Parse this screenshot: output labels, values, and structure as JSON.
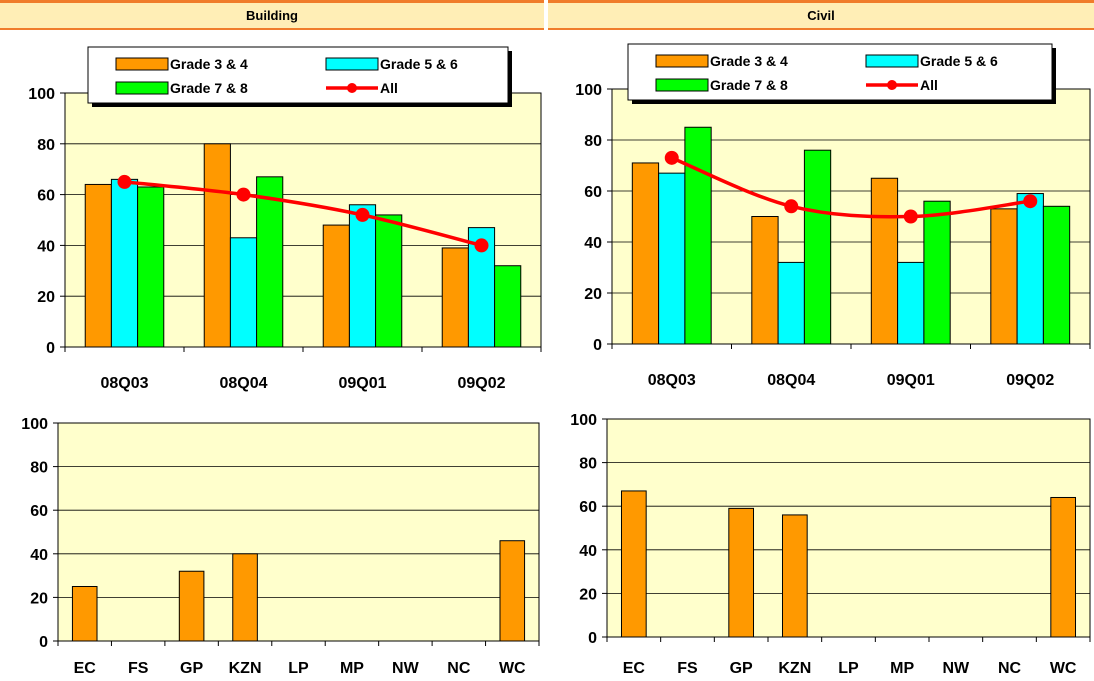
{
  "headers": {
    "left": "Building",
    "right": "Civil"
  },
  "colors": {
    "grade34": "#ff9900",
    "grade56": "#00ffff",
    "grade78": "#00ff00",
    "all": "#ff0000",
    "plot_bg": "#ffffcc",
    "header_bg": "#ffeeb6",
    "header_border": "#f07c2b"
  },
  "chart_data": [
    {
      "id": "building-quarterly",
      "type": "bar",
      "categories": [
        "08Q03",
        "08Q04",
        "09Q01",
        "09Q02"
      ],
      "series": [
        {
          "name": "Grade 3 & 4",
          "values": [
            64,
            80,
            48,
            39
          ]
        },
        {
          "name": "Grade 5 & 6",
          "values": [
            66,
            43,
            56,
            47
          ]
        },
        {
          "name": "Grade 7 & 8",
          "values": [
            63,
            67,
            52,
            32
          ]
        },
        {
          "name": "All",
          "type": "line",
          "values": [
            65,
            60,
            52,
            40
          ]
        }
      ],
      "yticks": [
        "0",
        "20",
        "40",
        "60",
        "80",
        "100"
      ],
      "ylim": [
        0,
        100
      ],
      "legend": "top-inside",
      "grid": true
    },
    {
      "id": "civil-quarterly",
      "type": "bar",
      "categories": [
        "08Q03",
        "08Q04",
        "09Q01",
        "09Q02"
      ],
      "series": [
        {
          "name": "Grade 3 & 4",
          "values": [
            71,
            50,
            65,
            53
          ]
        },
        {
          "name": "Grade 5 & 6",
          "values": [
            67,
            32,
            32,
            59
          ]
        },
        {
          "name": "Grade 7 & 8",
          "values": [
            85,
            76,
            56,
            54
          ]
        },
        {
          "name": "All",
          "type": "line",
          "values": [
            73,
            54,
            50,
            56
          ]
        }
      ],
      "yticks": [
        "0",
        "20",
        "40",
        "60",
        "80",
        "100"
      ],
      "ylim": [
        0,
        100
      ],
      "legend": "top-inside",
      "grid": true
    },
    {
      "id": "building-province",
      "type": "bar",
      "categories": [
        "EC",
        "FS",
        "GP",
        "KZN",
        "LP",
        "MP",
        "NW",
        "NC",
        "WC"
      ],
      "values": [
        25,
        0,
        32,
        40,
        0,
        0,
        0,
        0,
        46
      ],
      "yticks": [
        "0",
        "20",
        "40",
        "60",
        "80",
        "100"
      ],
      "ylim": [
        0,
        100
      ],
      "grid": true
    },
    {
      "id": "civil-province",
      "type": "bar",
      "categories": [
        "EC",
        "FS",
        "GP",
        "KZN",
        "LP",
        "MP",
        "NW",
        "NC",
        "WC"
      ],
      "values": [
        67,
        0,
        59,
        56,
        0,
        0,
        0,
        0,
        64
      ],
      "yticks": [
        "0",
        "20",
        "40",
        "60",
        "80",
        "100"
      ],
      "ylim": [
        0,
        100
      ],
      "grid": true
    }
  ]
}
